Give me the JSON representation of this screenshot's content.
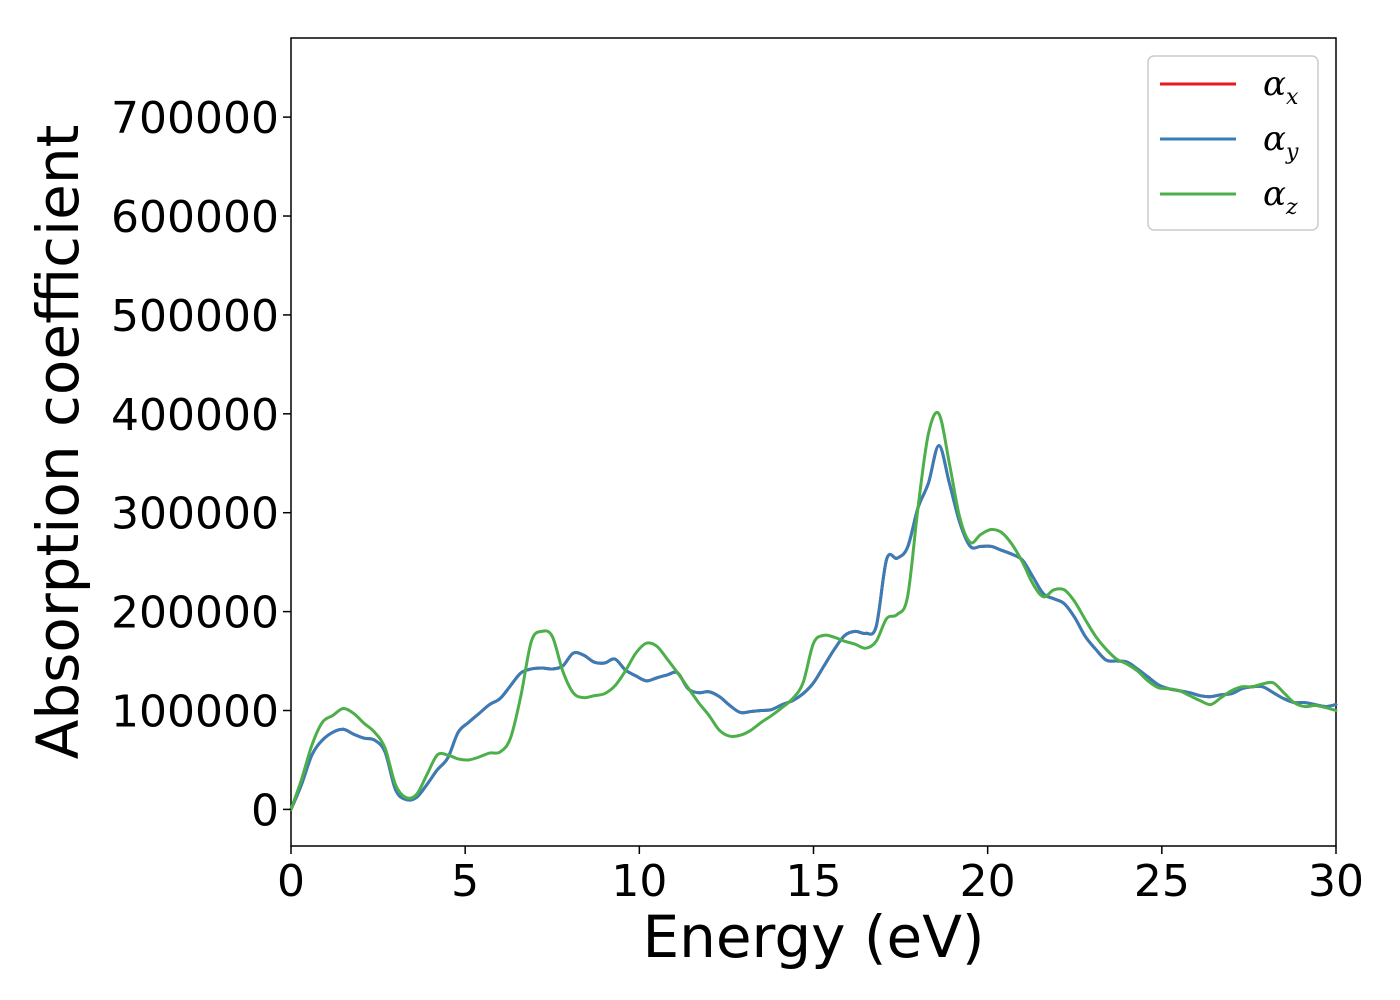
{
  "chart_data": {
    "type": "line",
    "title": "",
    "xlabel": "Energy (eV)",
    "ylabel": "Absorption coefficient",
    "xlim": [
      0,
      30
    ],
    "ylim": [
      -37000,
      780000
    ],
    "xticks": [
      0,
      5,
      10,
      15,
      20,
      25,
      30
    ],
    "yticks": [
      0,
      100000,
      200000,
      300000,
      400000,
      500000,
      600000,
      700000
    ],
    "grid": false,
    "legend_position": "top-right",
    "series": [
      {
        "name": "α",
        "subscript": "x",
        "color": "#e41a1c",
        "x": [
          0,
          0.3,
          0.6,
          0.9,
          1.2,
          1.5,
          1.8,
          2.1,
          2.4,
          2.7,
          3.0,
          3.3,
          3.6,
          3.9,
          4.2,
          4.5,
          4.8,
          5.1,
          5.4,
          5.7,
          6.0,
          6.3,
          6.6,
          6.9,
          7.2,
          7.5,
          7.8,
          8.1,
          8.4,
          8.7,
          9.0,
          9.3,
          9.6,
          9.9,
          10.2,
          10.5,
          10.8,
          11.1,
          11.4,
          11.7,
          12.0,
          12.3,
          12.6,
          12.9,
          13.2,
          13.5,
          13.8,
          14.1,
          14.4,
          14.7,
          15.0,
          15.3,
          15.6,
          15.9,
          16.2,
          16.5,
          16.8,
          17.1,
          17.4,
          17.7,
          18.0,
          18.3,
          18.6,
          18.9,
          19.2,
          19.5,
          19.8,
          20.1,
          20.4,
          20.7,
          21.0,
          21.3,
          21.6,
          21.9,
          22.2,
          22.5,
          22.8,
          23.1,
          23.4,
          23.7,
          24.0,
          24.3,
          24.6,
          24.9,
          25.2,
          25.5,
          25.8,
          26.1,
          26.4,
          26.7,
          27.0,
          27.3,
          27.6,
          27.9,
          28.2,
          28.5,
          28.8,
          29.1,
          29.4,
          29.7,
          30.0
        ],
        "values": [
          0,
          25000,
          55000,
          70000,
          78000,
          81000,
          76000,
          72000,
          70000,
          58000,
          20000,
          10000,
          12000,
          25000,
          40000,
          52000,
          78000,
          88000,
          97000,
          106000,
          112000,
          125000,
          138000,
          142000,
          143000,
          142000,
          145000,
          158000,
          156000,
          149000,
          148000,
          152000,
          141000,
          135000,
          130000,
          133000,
          136000,
          138000,
          122000,
          118000,
          119000,
          114000,
          105000,
          98000,
          99000,
          100000,
          101000,
          106000,
          110000,
          117000,
          128000,
          145000,
          162000,
          176000,
          180000,
          178000,
          185000,
          253000,
          254000,
          265000,
          305000,
          330000,
          368000,
          330000,
          290000,
          266000,
          266000,
          266000,
          262000,
          258000,
          252000,
          235000,
          218000,
          213000,
          208000,
          194000,
          175000,
          162000,
          151000,
          150000,
          149000,
          142000,
          134000,
          126000,
          122000,
          120000,
          118000,
          115000,
          114000,
          116000,
          117000,
          122000,
          124000,
          124000,
          118000,
          112000,
          108000,
          108000,
          106000,
          104000,
          106000
        ]
      },
      {
        "name": "α",
        "subscript": "y",
        "color": "#377eb8",
        "x": [
          0,
          0.3,
          0.6,
          0.9,
          1.2,
          1.5,
          1.8,
          2.1,
          2.4,
          2.7,
          3.0,
          3.3,
          3.6,
          3.9,
          4.2,
          4.5,
          4.8,
          5.1,
          5.4,
          5.7,
          6.0,
          6.3,
          6.6,
          6.9,
          7.2,
          7.5,
          7.8,
          8.1,
          8.4,
          8.7,
          9.0,
          9.3,
          9.6,
          9.9,
          10.2,
          10.5,
          10.8,
          11.1,
          11.4,
          11.7,
          12.0,
          12.3,
          12.6,
          12.9,
          13.2,
          13.5,
          13.8,
          14.1,
          14.4,
          14.7,
          15.0,
          15.3,
          15.6,
          15.9,
          16.2,
          16.5,
          16.8,
          17.1,
          17.4,
          17.7,
          18.0,
          18.3,
          18.6,
          18.9,
          19.2,
          19.5,
          19.8,
          20.1,
          20.4,
          20.7,
          21.0,
          21.3,
          21.6,
          21.9,
          22.2,
          22.5,
          22.8,
          23.1,
          23.4,
          23.7,
          24.0,
          24.3,
          24.6,
          24.9,
          25.2,
          25.5,
          25.8,
          26.1,
          26.4,
          26.7,
          27.0,
          27.3,
          27.6,
          27.9,
          28.2,
          28.5,
          28.8,
          29.1,
          29.4,
          29.7,
          30.0
        ],
        "values": [
          0,
          25000,
          55000,
          70000,
          78000,
          81000,
          76000,
          72000,
          70000,
          58000,
          20000,
          10000,
          12000,
          25000,
          40000,
          52000,
          78000,
          88000,
          97000,
          106000,
          112000,
          125000,
          138000,
          142000,
          143000,
          142000,
          145000,
          158000,
          156000,
          149000,
          148000,
          152000,
          141000,
          135000,
          130000,
          133000,
          136000,
          138000,
          122000,
          118000,
          119000,
          114000,
          105000,
          98000,
          99000,
          100000,
          101000,
          106000,
          110000,
          117000,
          128000,
          145000,
          162000,
          176000,
          180000,
          178000,
          185000,
          253000,
          254000,
          265000,
          305000,
          330000,
          368000,
          330000,
          290000,
          266000,
          266000,
          266000,
          262000,
          258000,
          252000,
          235000,
          218000,
          213000,
          208000,
          194000,
          175000,
          162000,
          151000,
          150000,
          149000,
          142000,
          134000,
          126000,
          122000,
          120000,
          118000,
          115000,
          114000,
          116000,
          117000,
          122000,
          124000,
          124000,
          118000,
          112000,
          108000,
          108000,
          106000,
          104000,
          106000
        ]
      },
      {
        "name": "α",
        "subscript": "z",
        "color": "#4daf4a",
        "x": [
          0,
          0.3,
          0.6,
          0.9,
          1.2,
          1.5,
          1.8,
          2.1,
          2.4,
          2.7,
          3.0,
          3.3,
          3.6,
          3.9,
          4.2,
          4.5,
          4.8,
          5.1,
          5.4,
          5.7,
          6.0,
          6.3,
          6.6,
          6.9,
          7.2,
          7.5,
          7.8,
          8.1,
          8.4,
          8.7,
          9.0,
          9.3,
          9.6,
          9.9,
          10.2,
          10.5,
          10.8,
          11.1,
          11.4,
          11.7,
          12.0,
          12.3,
          12.6,
          12.9,
          13.2,
          13.5,
          13.8,
          14.1,
          14.4,
          14.7,
          15.0,
          15.3,
          15.6,
          15.9,
          16.2,
          16.5,
          16.8,
          17.1,
          17.4,
          17.7,
          18.0,
          18.3,
          18.6,
          18.9,
          19.2,
          19.5,
          19.8,
          20.1,
          20.4,
          20.7,
          21.0,
          21.3,
          21.6,
          21.9,
          22.2,
          22.5,
          22.8,
          23.1,
          23.4,
          23.7,
          24.0,
          24.3,
          24.6,
          24.9,
          25.2,
          25.5,
          25.8,
          26.1,
          26.4,
          26.7,
          27.0,
          27.3,
          27.6,
          27.9,
          28.2,
          28.5,
          28.8,
          29.1,
          29.4,
          29.7,
          30.0
        ],
        "values": [
          0,
          30000,
          65000,
          88000,
          95000,
          102000,
          97000,
          87000,
          78000,
          62000,
          25000,
          12000,
          15000,
          35000,
          55000,
          55000,
          51000,
          50000,
          53000,
          57000,
          58000,
          72000,
          115000,
          170000,
          180000,
          175000,
          140000,
          118000,
          113000,
          115000,
          117000,
          125000,
          140000,
          158000,
          168000,
          165000,
          152000,
          138000,
          123000,
          108000,
          95000,
          80000,
          74000,
          75000,
          80000,
          88000,
          95000,
          103000,
          112000,
          128000,
          168000,
          176000,
          174000,
          170000,
          167000,
          163000,
          170000,
          193000,
          197000,
          215000,
          305000,
          380000,
          400000,
          350000,
          295000,
          270000,
          278000,
          283000,
          280000,
          268000,
          250000,
          228000,
          215000,
          222000,
          222000,
          210000,
          192000,
          175000,
          162000,
          152000,
          147000,
          140000,
          130000,
          123000,
          122000,
          120000,
          115000,
          110000,
          106000,
          113000,
          120000,
          124000,
          124000,
          127000,
          128000,
          118000,
          108000,
          104000,
          105000,
          103000,
          100000
        ]
      }
    ]
  }
}
